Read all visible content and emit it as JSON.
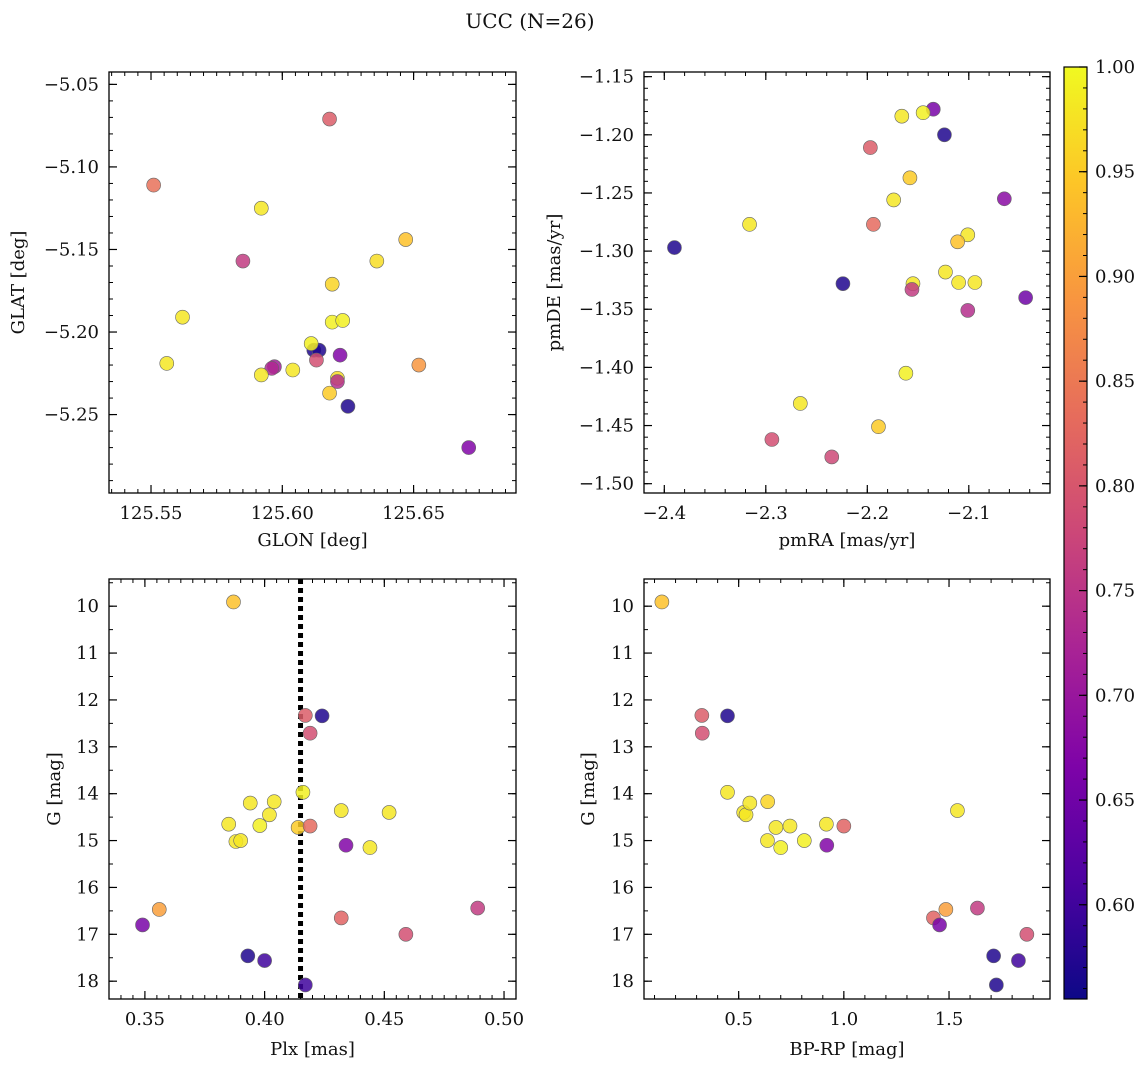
{
  "title": "UCC (N=26)",
  "colorbar": {
    "colormap": "plasma",
    "range": [
      0.555,
      1.0
    ],
    "ticks": [
      "0.60",
      "0.65",
      "0.70",
      "0.75",
      "0.80",
      "0.85",
      "0.90",
      "0.95",
      "1.00"
    ],
    "tick_values": [
      0.6,
      0.65,
      0.7,
      0.75,
      0.8,
      0.85,
      0.9,
      0.95,
      1.0
    ]
  },
  "chart_data": [
    {
      "type": "scatter",
      "xlabel": "GLON [deg]",
      "ylabel": "GLAT [deg]",
      "xlim": [
        125.534,
        125.689
      ],
      "ylim": [
        -5.2975,
        -5.0425
      ],
      "xticks": [
        "125.55",
        "125.60",
        "125.65"
      ],
      "xtick_values": [
        125.55,
        125.6,
        125.65
      ],
      "yticks": [
        "−5.05",
        "−5.10",
        "−5.15",
        "−5.20",
        "−5.25"
      ],
      "ytick_values": [
        -5.05,
        -5.1,
        -5.15,
        -5.2,
        -5.25
      ],
      "points": [
        {
          "x": 125.618,
          "y": -5.071,
          "c": 0.81
        },
        {
          "x": 125.551,
          "y": -5.111,
          "c": 0.84
        },
        {
          "x": 125.592,
          "y": -5.125,
          "c": 0.98
        },
        {
          "x": 125.585,
          "y": -5.157,
          "c": 0.76
        },
        {
          "x": 125.636,
          "y": -5.157,
          "c": 0.97
        },
        {
          "x": 125.647,
          "y": -5.144,
          "c": 0.94
        },
        {
          "x": 125.619,
          "y": -5.171,
          "c": 0.96
        },
        {
          "x": 125.562,
          "y": -5.191,
          "c": 0.98
        },
        {
          "x": 125.619,
          "y": -5.194,
          "c": 0.99
        },
        {
          "x": 125.623,
          "y": -5.193,
          "c": 0.99
        },
        {
          "x": 125.612,
          "y": -5.211,
          "c": 0.57
        },
        {
          "x": 125.614,
          "y": -5.211,
          "c": 0.57
        },
        {
          "x": 125.611,
          "y": -5.207,
          "c": 0.99
        },
        {
          "x": 125.622,
          "y": -5.214,
          "c": 0.67
        },
        {
          "x": 125.613,
          "y": -5.217,
          "c": 0.79
        },
        {
          "x": 125.556,
          "y": -5.219,
          "c": 0.98
        },
        {
          "x": 125.597,
          "y": -5.221,
          "c": 0.71
        },
        {
          "x": 125.596,
          "y": -5.222,
          "c": 0.73
        },
        {
          "x": 125.604,
          "y": -5.223,
          "c": 0.98
        },
        {
          "x": 125.592,
          "y": -5.226,
          "c": 0.98
        },
        {
          "x": 125.621,
          "y": -5.228,
          "c": 0.97
        },
        {
          "x": 125.621,
          "y": -5.23,
          "c": 0.74
        },
        {
          "x": 125.652,
          "y": -5.22,
          "c": 0.89
        },
        {
          "x": 125.618,
          "y": -5.237,
          "c": 0.95
        },
        {
          "x": 125.625,
          "y": -5.245,
          "c": 0.57
        },
        {
          "x": 125.671,
          "y": -5.27,
          "c": 0.67
        }
      ]
    },
    {
      "type": "scatter",
      "xlabel": "pmRA [mas/yr]",
      "ylabel": "pmDE [mas/yr]",
      "xlim": [
        -2.42,
        -2.02
      ],
      "ylim": [
        -1.508,
        -1.146
      ],
      "xticks": [
        "−2.4",
        "−2.3",
        "−2.2",
        "−2.1"
      ],
      "xtick_values": [
        -2.4,
        -2.3,
        -2.2,
        -2.1
      ],
      "yticks": [
        "−1.15",
        "−1.20",
        "−1.25",
        "−1.30",
        "−1.35",
        "−1.40",
        "−1.45",
        "−1.50"
      ],
      "ytick_values": [
        -1.15,
        -1.2,
        -1.25,
        -1.3,
        -1.35,
        -1.4,
        -1.45,
        -1.5
      ],
      "points": [
        {
          "x": -2.135,
          "y": -1.178,
          "c": 0.66
        },
        {
          "x": -2.145,
          "y": -1.181,
          "c": 0.99
        },
        {
          "x": -2.166,
          "y": -1.184,
          "c": 0.98
        },
        {
          "x": -2.124,
          "y": -1.2,
          "c": 0.57
        },
        {
          "x": -2.197,
          "y": -1.211,
          "c": 0.81
        },
        {
          "x": -2.158,
          "y": -1.237,
          "c": 0.95
        },
        {
          "x": -2.174,
          "y": -1.256,
          "c": 0.98
        },
        {
          "x": -2.065,
          "y": -1.255,
          "c": 0.68
        },
        {
          "x": -2.316,
          "y": -1.277,
          "c": 0.98
        },
        {
          "x": -2.194,
          "y": -1.277,
          "c": 0.83
        },
        {
          "x": -2.101,
          "y": -1.286,
          "c": 0.98
        },
        {
          "x": -2.111,
          "y": -1.292,
          "c": 0.94
        },
        {
          "x": -2.39,
          "y": -1.297,
          "c": 0.57
        },
        {
          "x": -2.224,
          "y": -1.328,
          "c": 0.57
        },
        {
          "x": -2.155,
          "y": -1.328,
          "c": 0.98
        },
        {
          "x": -2.156,
          "y": -1.333,
          "c": 0.76
        },
        {
          "x": -2.123,
          "y": -1.318,
          "c": 0.98
        },
        {
          "x": -2.11,
          "y": -1.327,
          "c": 0.98
        },
        {
          "x": -2.094,
          "y": -1.327,
          "c": 0.98
        },
        {
          "x": -2.044,
          "y": -1.34,
          "c": 0.65
        },
        {
          "x": -2.101,
          "y": -1.351,
          "c": 0.74
        },
        {
          "x": -2.162,
          "y": -1.405,
          "c": 0.99
        },
        {
          "x": -2.266,
          "y": -1.431,
          "c": 0.98
        },
        {
          "x": -2.189,
          "y": -1.451,
          "c": 0.95
        },
        {
          "x": -2.294,
          "y": -1.462,
          "c": 0.79
        },
        {
          "x": -2.235,
          "y": -1.477,
          "c": 0.78
        }
      ]
    },
    {
      "type": "scatter",
      "xlabel": "Plx [mas]",
      "ylabel": "G [mag]",
      "xlim": [
        0.335,
        0.505
      ],
      "ylim": [
        18.38,
        9.42
      ],
      "reference_line_x": 0.415,
      "xticks": [
        "0.35",
        "0.40",
        "0.45",
        "0.50"
      ],
      "xtick_values": [
        0.35,
        0.4,
        0.45,
        0.5
      ],
      "yticks": [
        "10",
        "11",
        "12",
        "13",
        "14",
        "15",
        "16",
        "17",
        "18"
      ],
      "ytick_values": [
        10,
        11,
        12,
        13,
        14,
        15,
        16,
        17,
        18
      ],
      "points": [
        {
          "x": 0.387,
          "y": 9.91,
          "c": 0.94
        },
        {
          "x": 0.424,
          "y": 12.34,
          "c": 0.57
        },
        {
          "x": 0.417,
          "y": 12.33,
          "c": 0.81
        },
        {
          "x": 0.419,
          "y": 12.71,
          "c": 0.79
        },
        {
          "x": 0.416,
          "y": 13.97,
          "c": 0.99
        },
        {
          "x": 0.394,
          "y": 14.2,
          "c": 0.98
        },
        {
          "x": 0.404,
          "y": 14.17,
          "c": 0.98
        },
        {
          "x": 0.402,
          "y": 14.45,
          "c": 0.98
        },
        {
          "x": 0.432,
          "y": 14.36,
          "c": 0.98
        },
        {
          "x": 0.452,
          "y": 14.4,
          "c": 0.98
        },
        {
          "x": 0.385,
          "y": 14.65,
          "c": 0.98
        },
        {
          "x": 0.398,
          "y": 14.68,
          "c": 0.99
        },
        {
          "x": 0.414,
          "y": 14.72,
          "c": 0.95
        },
        {
          "x": 0.419,
          "y": 14.69,
          "c": 0.83
        },
        {
          "x": 0.388,
          "y": 15.02,
          "c": 0.98
        },
        {
          "x": 0.39,
          "y": 15.0,
          "c": 0.98
        },
        {
          "x": 0.434,
          "y": 15.1,
          "c": 0.67
        },
        {
          "x": 0.444,
          "y": 15.15,
          "c": 0.98
        },
        {
          "x": 0.356,
          "y": 16.47,
          "c": 0.9
        },
        {
          "x": 0.489,
          "y": 16.44,
          "c": 0.76
        },
        {
          "x": 0.432,
          "y": 16.65,
          "c": 0.82
        },
        {
          "x": 0.349,
          "y": 16.8,
          "c": 0.66
        },
        {
          "x": 0.459,
          "y": 17.0,
          "c": 0.79
        },
        {
          "x": 0.393,
          "y": 17.46,
          "c": 0.57
        },
        {
          "x": 0.4,
          "y": 17.56,
          "c": 0.6
        },
        {
          "x": 0.417,
          "y": 18.08,
          "c": 0.6
        }
      ]
    },
    {
      "type": "scatter",
      "xlabel": "BP-RP [mag]",
      "ylabel": "G [mag]",
      "xlim": [
        0.05,
        1.98
      ],
      "ylim": [
        18.38,
        9.42
      ],
      "xticks": [
        "0.5",
        "1.0",
        "1.5"
      ],
      "xtick_values": [
        0.5,
        1.0,
        1.5
      ],
      "yticks": [
        "10",
        "11",
        "12",
        "13",
        "14",
        "15",
        "16",
        "17",
        "18"
      ],
      "ytick_values": [
        10,
        11,
        12,
        13,
        14,
        15,
        16,
        17,
        18
      ],
      "points": [
        {
          "x": 0.135,
          "y": 9.91,
          "c": 0.94
        },
        {
          "x": 0.325,
          "y": 12.33,
          "c": 0.81
        },
        {
          "x": 0.327,
          "y": 12.71,
          "c": 0.79
        },
        {
          "x": 0.447,
          "y": 12.34,
          "c": 0.57
        },
        {
          "x": 0.447,
          "y": 13.97,
          "c": 0.98
        },
        {
          "x": 0.524,
          "y": 14.4,
          "c": 0.98
        },
        {
          "x": 0.535,
          "y": 14.45,
          "c": 0.98
        },
        {
          "x": 0.553,
          "y": 14.2,
          "c": 0.98
        },
        {
          "x": 0.638,
          "y": 14.17,
          "c": 0.96
        },
        {
          "x": 0.637,
          "y": 15.0,
          "c": 0.98
        },
        {
          "x": 0.677,
          "y": 14.72,
          "c": 0.98
        },
        {
          "x": 0.7,
          "y": 15.15,
          "c": 0.99
        },
        {
          "x": 0.744,
          "y": 14.69,
          "c": 0.98
        },
        {
          "x": 0.812,
          "y": 15.0,
          "c": 0.99
        },
        {
          "x": 0.917,
          "y": 14.65,
          "c": 0.98
        },
        {
          "x": 0.919,
          "y": 15.1,
          "c": 0.67
        },
        {
          "x": 1.0,
          "y": 14.69,
          "c": 0.82
        },
        {
          "x": 1.54,
          "y": 14.36,
          "c": 0.98
        },
        {
          "x": 1.426,
          "y": 16.65,
          "c": 0.82
        },
        {
          "x": 1.485,
          "y": 16.47,
          "c": 0.9
        },
        {
          "x": 1.455,
          "y": 16.8,
          "c": 0.66
        },
        {
          "x": 1.635,
          "y": 16.44,
          "c": 0.76
        },
        {
          "x": 1.87,
          "y": 17.0,
          "c": 0.79
        },
        {
          "x": 1.712,
          "y": 17.46,
          "c": 0.57
        },
        {
          "x": 1.83,
          "y": 17.56,
          "c": 0.6
        },
        {
          "x": 1.725,
          "y": 18.08,
          "c": 0.57
        }
      ]
    }
  ]
}
